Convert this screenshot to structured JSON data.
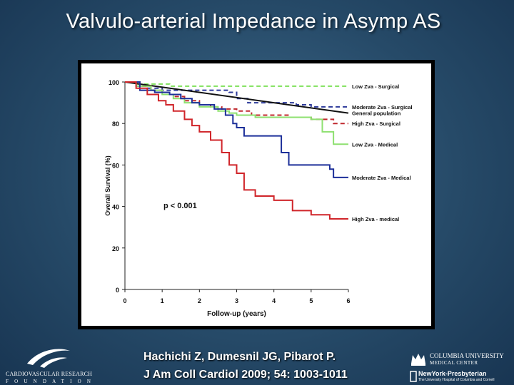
{
  "slide": {
    "title": "Valvulo-arterial Impedance in Asymp AS",
    "citation_line1": "Hachichi Z, Dumesnil JG, Pibarot P.",
    "citation_line2": "J Am Coll Cardiol 2009; 54: 1003-1011"
  },
  "logos": {
    "crf_name": "CARDIOVASCULAR RESEARCH",
    "crf_sub": "FOUNDATION",
    "cu_name1": "COLUMBIA UNIVERSITY",
    "cu_name2": "MEDICAL CENTER",
    "nyp_name": "NewYork-Presbyterian",
    "nyp_sub": "The University Hospital of Columbia and Cornell"
  },
  "chart_data": {
    "type": "line",
    "title": "",
    "xlabel": "Follow-up (years)",
    "ylabel": "Overall Survival (%)",
    "xlim": [
      0,
      6
    ],
    "ylim": [
      0,
      100
    ],
    "xticks": [
      0,
      1,
      2,
      3,
      4,
      5,
      6
    ],
    "yticks": [
      0,
      20,
      40,
      60,
      80,
      100
    ],
    "annotation": "p < 0.001",
    "grid": false,
    "series": [
      {
        "name": "Low Zva - Surgical",
        "color": "#7ee05a",
        "dash": true,
        "step": true,
        "points": [
          [
            0,
            100
          ],
          [
            0.3,
            99
          ],
          [
            1.2,
            98
          ],
          [
            6,
            98
          ]
        ]
      },
      {
        "name": "Moderate Zva - Surgical",
        "color": "#2d3a9a",
        "dash": true,
        "step": true,
        "points": [
          [
            0,
            100
          ],
          [
            0.3,
            98
          ],
          [
            0.6,
            97
          ],
          [
            1.0,
            96
          ],
          [
            2.0,
            96
          ],
          [
            2.8,
            95
          ],
          [
            3.0,
            92
          ],
          [
            3.3,
            90
          ],
          [
            4.0,
            90
          ],
          [
            4.6,
            89
          ],
          [
            5.0,
            88
          ],
          [
            6.0,
            88
          ]
        ]
      },
      {
        "name": "General population",
        "color": "#111111",
        "dash": false,
        "step": false,
        "points": [
          [
            0,
            100
          ],
          [
            6,
            85
          ]
        ]
      },
      {
        "name": "High Zva - Surgical",
        "color": "#c0282e",
        "dash": true,
        "step": true,
        "points": [
          [
            0,
            100
          ],
          [
            0.4,
            98
          ],
          [
            0.7,
            96
          ],
          [
            1.0,
            94
          ],
          [
            1.3,
            93
          ],
          [
            1.6,
            91
          ],
          [
            2.0,
            89
          ],
          [
            2.3,
            88
          ],
          [
            2.6,
            87
          ],
          [
            3.0,
            86
          ],
          [
            3.4,
            84
          ],
          [
            4.0,
            84
          ],
          [
            4.4,
            83
          ],
          [
            5.0,
            82
          ],
          [
            5.6,
            80
          ],
          [
            6.0,
            80
          ]
        ]
      },
      {
        "name": "Low Zva - Medical",
        "color": "#8ee070",
        "dash": false,
        "step": true,
        "points": [
          [
            0,
            100
          ],
          [
            0.3,
            98
          ],
          [
            0.7,
            96
          ],
          [
            1.0,
            94
          ],
          [
            1.3,
            92
          ],
          [
            1.6,
            90
          ],
          [
            2.0,
            88
          ],
          [
            2.5,
            86
          ],
          [
            2.8,
            85
          ],
          [
            3.0,
            84
          ],
          [
            3.5,
            83
          ],
          [
            5.0,
            82
          ],
          [
            5.3,
            76
          ],
          [
            5.6,
            70
          ],
          [
            6.0,
            70
          ]
        ]
      },
      {
        "name": "Moderate Zva - Medical",
        "color": "#1c2f99",
        "dash": false,
        "step": true,
        "points": [
          [
            0,
            100
          ],
          [
            0.4,
            96
          ],
          [
            0.8,
            95
          ],
          [
            1.2,
            94
          ],
          [
            1.5,
            92
          ],
          [
            1.8,
            90
          ],
          [
            2.0,
            89
          ],
          [
            2.4,
            87
          ],
          [
            2.7,
            84
          ],
          [
            2.9,
            80
          ],
          [
            3.0,
            78
          ],
          [
            3.2,
            74
          ],
          [
            4.0,
            74
          ],
          [
            4.2,
            66
          ],
          [
            4.4,
            60
          ],
          [
            5.5,
            58
          ],
          [
            5.6,
            54
          ],
          [
            6.0,
            54
          ]
        ]
      },
      {
        "name": "High Zva - medical",
        "color": "#d0252a",
        "dash": false,
        "step": true,
        "points": [
          [
            0,
            100
          ],
          [
            0.3,
            97
          ],
          [
            0.6,
            94
          ],
          [
            0.9,
            91
          ],
          [
            1.1,
            89
          ],
          [
            1.3,
            86
          ],
          [
            1.6,
            82
          ],
          [
            1.8,
            79
          ],
          [
            2.0,
            76
          ],
          [
            2.3,
            72
          ],
          [
            2.6,
            66
          ],
          [
            2.8,
            60
          ],
          [
            3.0,
            56
          ],
          [
            3.2,
            48
          ],
          [
            3.5,
            45
          ],
          [
            4.0,
            43
          ],
          [
            4.5,
            38
          ],
          [
            5.0,
            36
          ],
          [
            5.5,
            34
          ],
          [
            6.0,
            34
          ]
        ]
      }
    ],
    "legend_placement": "right-edge labels"
  }
}
